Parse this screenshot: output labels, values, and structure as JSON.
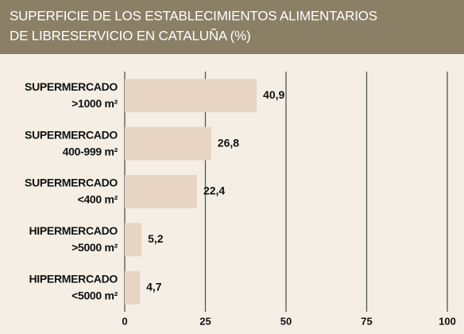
{
  "chart_data": {
    "type": "bar",
    "orientation": "horizontal",
    "title": [
      "SUPERFICIE DE LOS ESTABLECIMIENTOS ALIMENTARIOS",
      "DE LIBRESERVICIO EN CATALUÑA (%)"
    ],
    "categories": [
      [
        "SUPERMERCADO",
        ">1000 m²"
      ],
      [
        "SUPERMERCADO",
        "400-999 m²"
      ],
      [
        "SUPERMERCADO",
        "<400 m²"
      ],
      [
        "HIPERMERCADO",
        ">5000 m²"
      ],
      [
        "HIPERMERCADO",
        "<5000 m²"
      ]
    ],
    "values": [
      40.9,
      26.8,
      22.4,
      5.2,
      4.7
    ],
    "value_labels": [
      "40,9",
      "26,8",
      "22,4",
      "5,2",
      "4,7"
    ],
    "color": "#e8d4c2",
    "xlim": [
      0,
      100
    ],
    "xticks": [
      0,
      25,
      50,
      75,
      100
    ],
    "grid": true
  }
}
